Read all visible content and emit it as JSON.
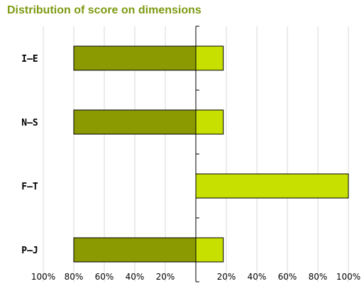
{
  "chart_data": {
    "type": "bar",
    "orientation": "horizontal-diverging",
    "title": "Distribution of score on dimensions",
    "categories": [
      "I–E",
      "N–S",
      "F–T",
      "P–J"
    ],
    "series": [
      {
        "values": [
          80,
          80,
          0,
          80
        ]
      },
      {
        "values": [
          18,
          18,
          100,
          18
        ]
      }
    ],
    "xlim": [
      -100,
      100
    ],
    "ticks": [
      -100,
      -80,
      -60,
      -40,
      -20,
      20,
      40,
      60,
      80,
      100
    ],
    "tick_labels": [
      "100%",
      "80%",
      "60%",
      "40%",
      "20%",
      "20%",
      "40%",
      "60%",
      "80%",
      "100%"
    ],
    "grid": true,
    "colors": {
      "left": "#8a9a00",
      "right": "#c8e000",
      "title": "#7d9a12",
      "grid": "#d8d8d8"
    }
  }
}
